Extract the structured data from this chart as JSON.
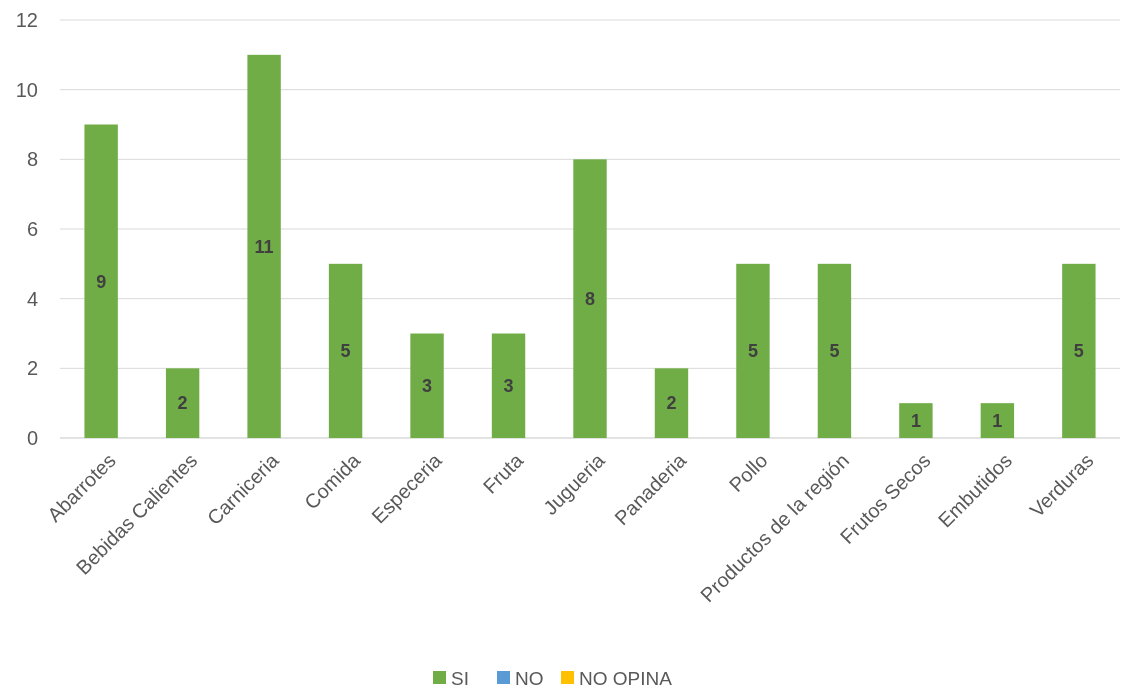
{
  "chart_data": {
    "type": "bar",
    "stacked": true,
    "categories": [
      "Abarrotes",
      "Bebidas Calientes",
      "Carniceria",
      "Comida",
      "Especeria",
      "Fruta",
      "Jugueria",
      "Panaderia",
      "Pollo",
      "Productos de la región",
      "Frutos Secos",
      "Embutidos",
      "Verduras"
    ],
    "series": [
      {
        "name": "SI",
        "color": "#70ad47",
        "values": [
          9,
          2,
          11,
          5,
          3,
          3,
          8,
          2,
          5,
          5,
          1,
          1,
          5
        ]
      },
      {
        "name": "NO",
        "color": "#5b9bd5",
        "values": [
          null,
          null,
          null,
          null,
          null,
          null,
          null,
          null,
          null,
          null,
          null,
          null,
          null
        ]
      },
      {
        "name": "NO OPINA",
        "color": "#ffc000",
        "values": [
          null,
          null,
          null,
          null,
          null,
          null,
          null,
          null,
          null,
          null,
          null,
          null,
          null
        ]
      }
    ],
    "ylim": [
      0,
      12
    ],
    "yticks": [
      0,
      2,
      4,
      6,
      8,
      10,
      12
    ],
    "grid": "y",
    "legend": "bottom",
    "data_labels": true
  }
}
